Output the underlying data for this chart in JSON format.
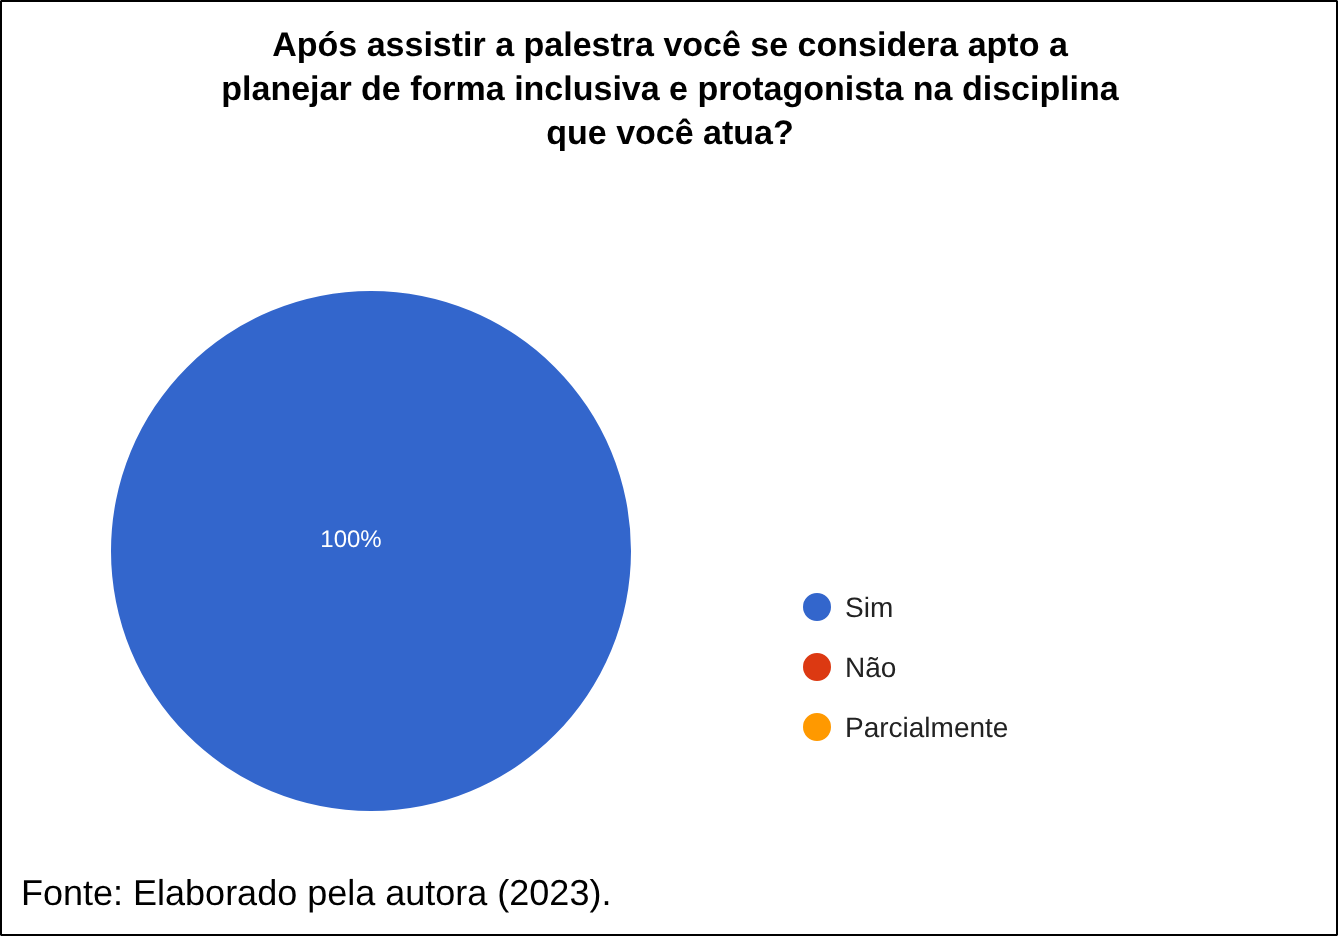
{
  "chart_data": {
    "type": "pie",
    "title": "Após assistir a palestra você se considera apto a\nplanejar de forma inclusiva e protagonista na disciplina\nque você atua?",
    "categories": [
      "Sim",
      "Não",
      "Parcialmente"
    ],
    "values": [
      100,
      0,
      0
    ],
    "colors": [
      "#3366cc",
      "#dc3912",
      "#ff9900"
    ],
    "value_labels": [
      "100%",
      null,
      null
    ],
    "legend": "right",
    "annotations": [
      "Fonte: Elaborado pela autora (2023)."
    ]
  }
}
